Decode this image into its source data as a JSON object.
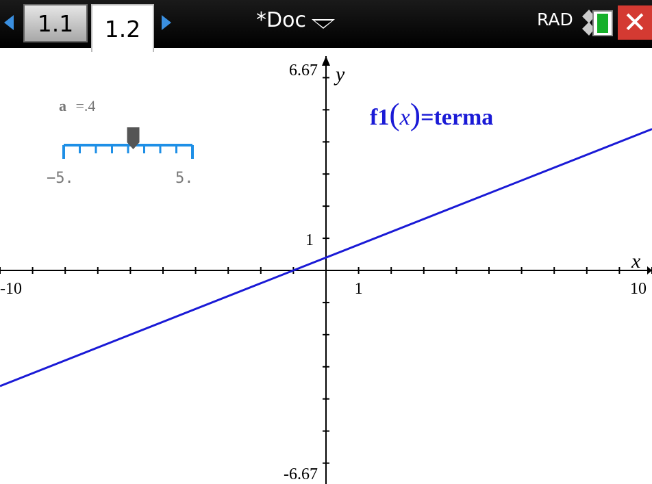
{
  "tabs": [
    {
      "label": "1.1",
      "active": false
    },
    {
      "label": "1.2",
      "active": true
    }
  ],
  "document": {
    "title": "*Doc"
  },
  "status": {
    "angle_mode": "RAD"
  },
  "close_symbol": "✕",
  "graph": {
    "window": {
      "xmin": -10,
      "xmax": 10,
      "ymin": -6.67,
      "ymax": 6.67
    },
    "tick_labels": {
      "xmin": "-10",
      "xmax": "10",
      "xone": "1",
      "ymax": "6.67",
      "ymin": "-6.67",
      "yone": "1"
    },
    "axis_labels": {
      "x": "x",
      "y": "y"
    },
    "function_label": {
      "name": "f1",
      "var": "x",
      "rhs": "=terma"
    },
    "function_color": "#1a1ad6",
    "line": {
      "slope": 0.4,
      "intercept": 0.4
    }
  },
  "slider": {
    "variable": "a",
    "value_text": "=.4",
    "value": 0.4,
    "min": -5,
    "max": 5,
    "min_label": "−5.",
    "max_label": "5.",
    "color": "#1e8fe6"
  }
}
